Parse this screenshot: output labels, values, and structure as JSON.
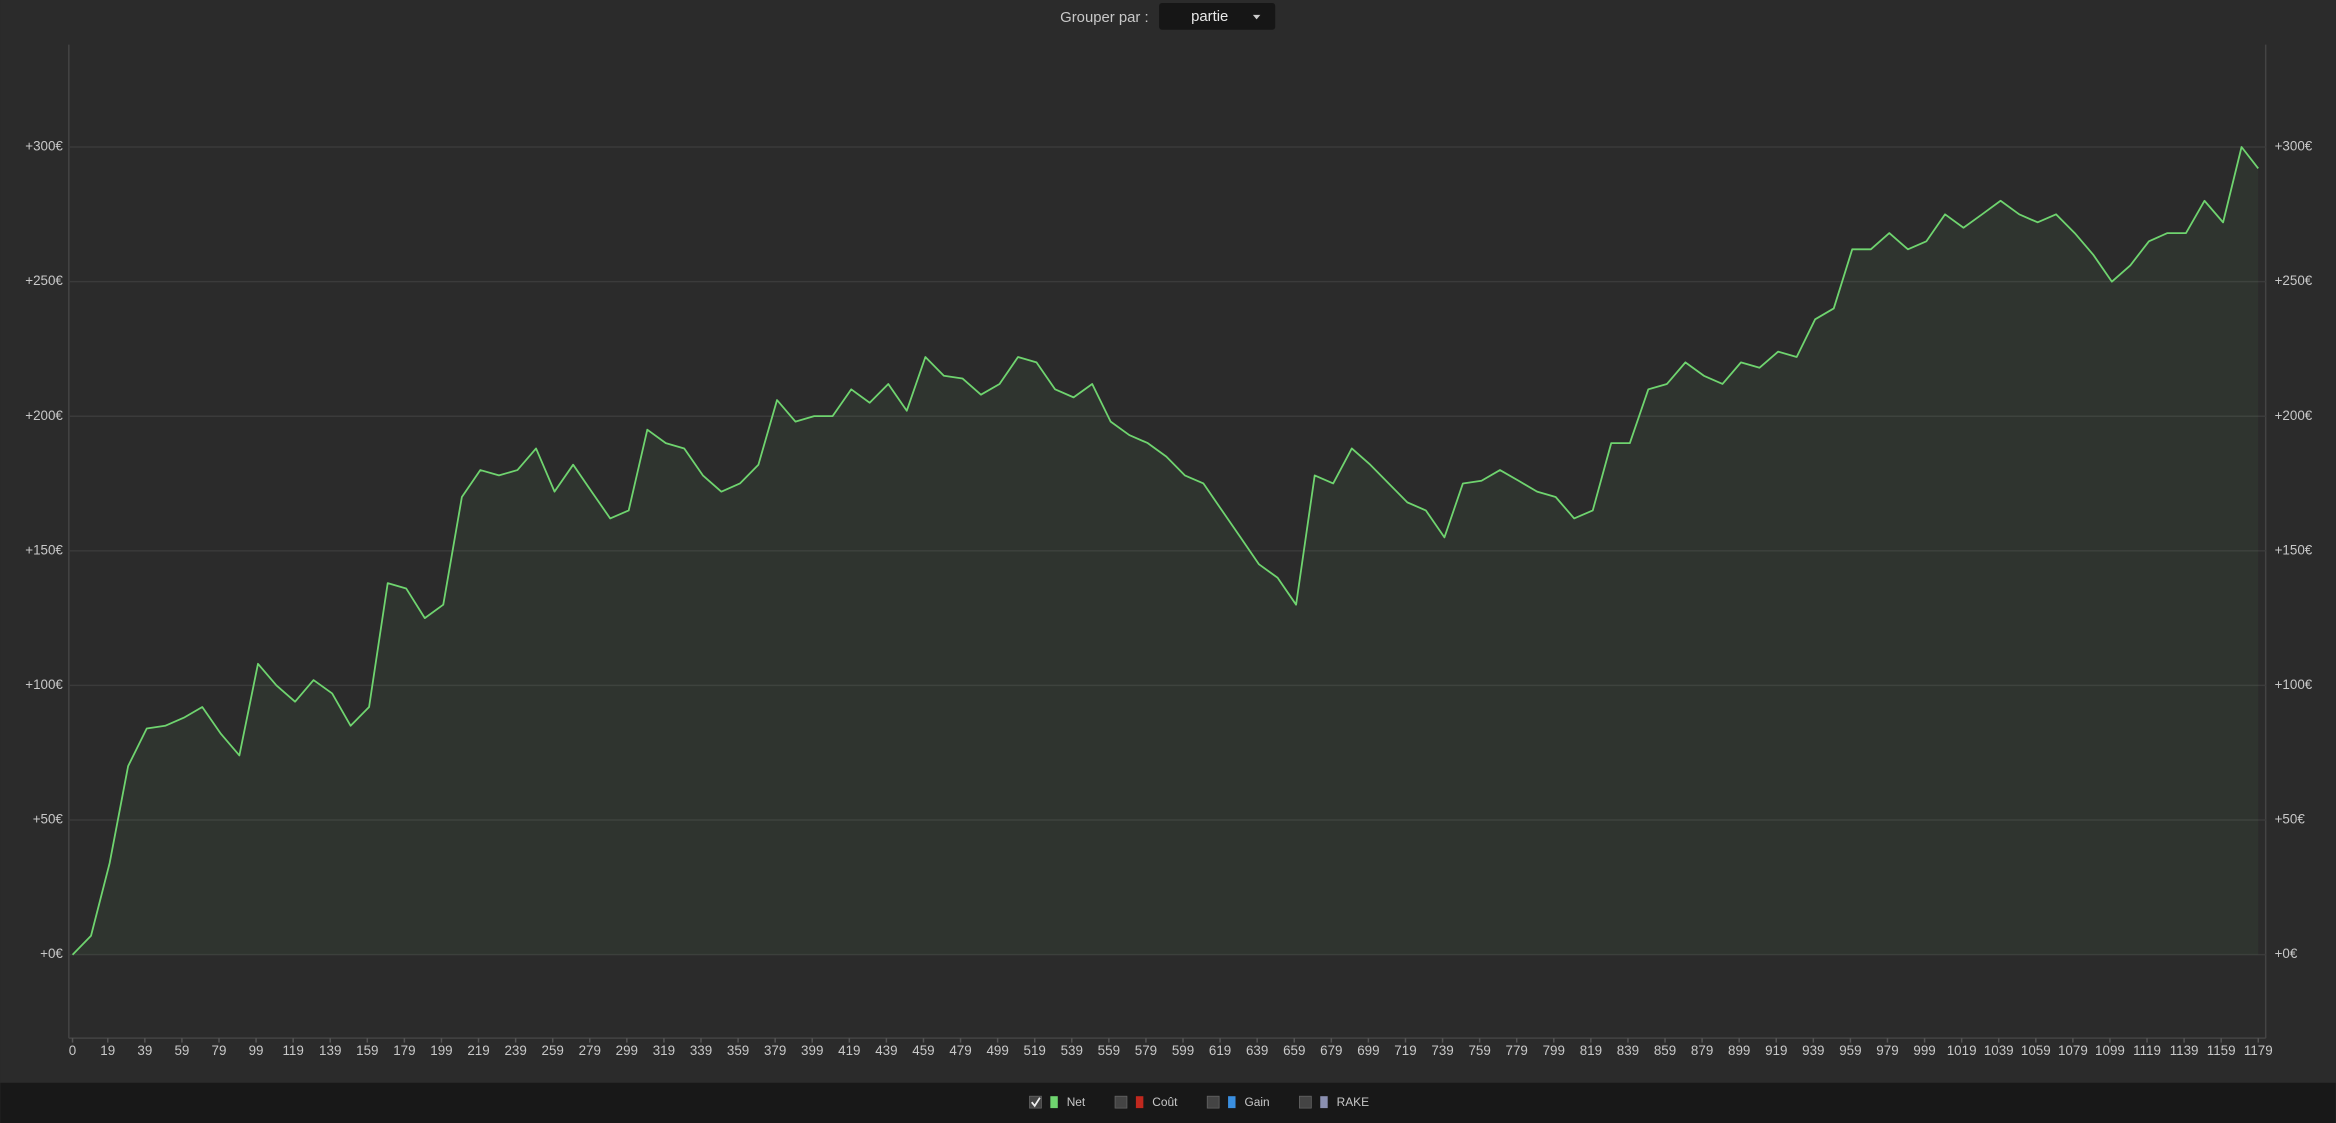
{
  "toolbar": {
    "label": "Grouper par :",
    "select": "partie"
  },
  "chart_data": {
    "type": "line",
    "x": [
      0,
      10,
      20,
      30,
      40,
      50,
      60,
      70,
      80,
      90,
      100,
      110,
      120,
      130,
      140,
      150,
      160,
      170,
      180,
      190,
      200,
      210,
      220,
      230,
      240,
      250,
      260,
      270,
      280,
      290,
      300,
      310,
      320,
      330,
      340,
      350,
      360,
      370,
      380,
      390,
      400,
      410,
      420,
      430,
      440,
      450,
      460,
      470,
      480,
      490,
      500,
      510,
      520,
      530,
      540,
      550,
      560,
      570,
      580,
      590,
      600,
      610,
      620,
      630,
      640,
      650,
      660,
      670,
      680,
      690,
      700,
      710,
      720,
      730,
      740,
      750,
      760,
      770,
      780,
      790,
      800,
      810,
      820,
      830,
      840,
      850,
      860,
      870,
      880,
      890,
      900,
      910,
      920,
      930,
      940,
      950,
      960,
      970,
      980,
      990,
      1000,
      1010,
      1020,
      1030,
      1040,
      1050,
      1060,
      1070,
      1080,
      1090,
      1100,
      1110,
      1120,
      1130,
      1140,
      1150,
      1160,
      1170,
      1179
    ],
    "series": [
      {
        "name": "Net",
        "color": "#6fd46f",
        "values": [
          0,
          7,
          34,
          70,
          84,
          85,
          88,
          92,
          82,
          74,
          108,
          100,
          94,
          102,
          97,
          85,
          92,
          138,
          136,
          125,
          130,
          170,
          180,
          178,
          180,
          188,
          172,
          182,
          172,
          162,
          165,
          195,
          190,
          188,
          178,
          172,
          175,
          182,
          206,
          198,
          200,
          200,
          210,
          205,
          212,
          202,
          222,
          215,
          214,
          208,
          212,
          222,
          220,
          210,
          207,
          212,
          198,
          193,
          190,
          185,
          178,
          175,
          165,
          155,
          145,
          140,
          130,
          178,
          175,
          188,
          182,
          175,
          168,
          165,
          155,
          175,
          176,
          180,
          176,
          172,
          170,
          162,
          165,
          190,
          190,
          210,
          212,
          220,
          215,
          212,
          220,
          218,
          224,
          222,
          236,
          240,
          262,
          262,
          268,
          262,
          265,
          275,
          270,
          275,
          280,
          275,
          272,
          275,
          268,
          260,
          250,
          256,
          265,
          268,
          268,
          280,
          272,
          300,
          292
        ]
      }
    ],
    "hidden_series": [
      {
        "name": "Coût",
        "color": "#c0281e"
      },
      {
        "name": "Gain",
        "color": "#3a8fe0"
      },
      {
        "name": "RAKE",
        "color": "#8a8fb0"
      }
    ],
    "xlim": [
      -2,
      1183
    ],
    "ylim": [
      -31,
      338
    ],
    "xticks": [
      0,
      19,
      39,
      59,
      79,
      99,
      119,
      139,
      159,
      179,
      199,
      219,
      239,
      259,
      279,
      299,
      319,
      339,
      359,
      379,
      399,
      419,
      439,
      459,
      479,
      499,
      519,
      539,
      559,
      579,
      599,
      619,
      639,
      659,
      679,
      699,
      719,
      739,
      759,
      779,
      799,
      819,
      839,
      859,
      879,
      899,
      919,
      939,
      959,
      979,
      999,
      1019,
      1039,
      1059,
      1079,
      1099,
      1119,
      1139,
      1159,
      1179
    ],
    "yticks": [
      {
        "value": 0,
        "label": "+0€"
      },
      {
        "value": 50,
        "label": "+50€"
      },
      {
        "value": 100,
        "label": "+100€"
      },
      {
        "value": 150,
        "label": "+150€"
      },
      {
        "value": 200,
        "label": "+200€"
      },
      {
        "value": 250,
        "label": "+250€"
      },
      {
        "value": 300,
        "label": "+300€"
      }
    ],
    "grid": true
  }
}
